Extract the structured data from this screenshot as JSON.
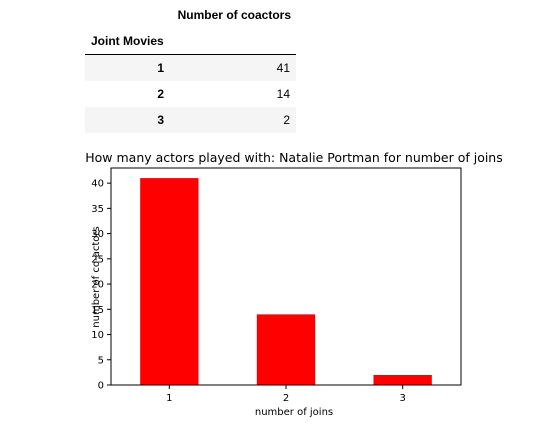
{
  "table": {
    "column_header": "Number of coactors",
    "index_name": "Joint Movies",
    "rows": [
      {
        "index": "1",
        "value": "41"
      },
      {
        "index": "2",
        "value": "14"
      },
      {
        "index": "3",
        "value": "2"
      }
    ]
  },
  "chart_data": {
    "type": "bar",
    "title": "How many actors played with: Natalie Portman for number of joins",
    "xlabel": "number of joins",
    "ylabel": "number of co-actors",
    "categories": [
      "1",
      "2",
      "3"
    ],
    "values": [
      41,
      14,
      2
    ],
    "ylim": [
      0,
      43
    ],
    "yticks": [
      0,
      5,
      10,
      15,
      20,
      25,
      30,
      35,
      40
    ],
    "grid": false,
    "legend": "none",
    "bar_color": "#ff0000"
  }
}
